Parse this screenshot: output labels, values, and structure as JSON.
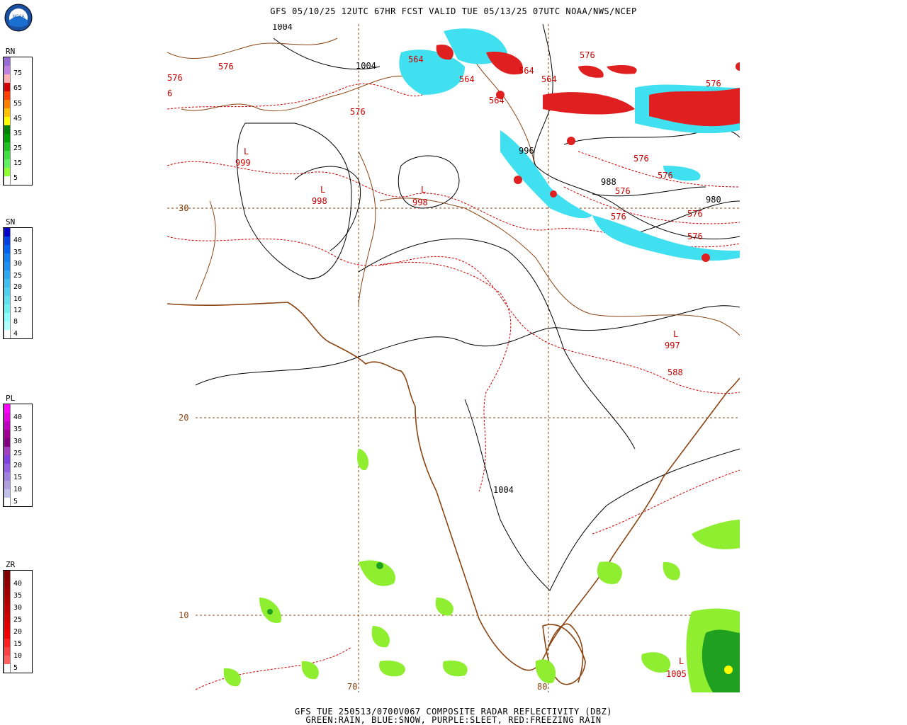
{
  "header": {
    "title": "GFS 05/10/25 12UTC 67HR FCST VALID TUE 05/13/25 07UTC NOAA/NWS/NCEP",
    "footer_line1": "GFS TUE 250513/0700V067 COMPOSITE RADAR REFLECTIVITY (DBZ)",
    "footer_line2": "GREEN:RAIN, BLUE:SNOW, PURPLE:SLEET, RED:FREEZING RAIN",
    "logo_text": "NOAA"
  },
  "legends": [
    {
      "key": "rn",
      "label": "RN",
      "ticks": [
        "75",
        "65",
        "55",
        "45",
        "35",
        "25",
        "15",
        "5"
      ],
      "colors": [
        "#9a6ad8",
        "#c080e0",
        "#ffb0b0",
        "#d00000",
        "#ff4000",
        "#ff8000",
        "#ffc000",
        "#ffff00",
        "#008000",
        "#00a000",
        "#20c020",
        "#40e040",
        "#60f060",
        "#90ff30",
        "#ffffff"
      ]
    },
    {
      "key": "sn",
      "label": "SN",
      "ticks": [
        "40",
        "35",
        "30",
        "25",
        "20",
        "16",
        "12",
        "8",
        "4"
      ],
      "colors": [
        "#0000c8",
        "#0040e0",
        "#0060f0",
        "#1080f0",
        "#2090f0",
        "#30a8f0",
        "#40c0f0",
        "#50d0f0",
        "#60e0f0",
        "#70f0f0",
        "#90ffff",
        "#b0ffff",
        "#ffffff"
      ]
    },
    {
      "key": "pl",
      "label": "PL",
      "ticks": [
        "40",
        "35",
        "30",
        "25",
        "20",
        "15",
        "10",
        "5"
      ],
      "colors": [
        "#ff00ff",
        "#e000e0",
        "#c000c0",
        "#a00090",
        "#800080",
        "#a040c0",
        "#8040e0",
        "#9060e0",
        "#a080e0",
        "#b0a0e0",
        "#c0c0e8",
        "#ffffff"
      ]
    },
    {
      "key": "zr",
      "label": "ZR",
      "ticks": [
        "40",
        "35",
        "30",
        "25",
        "20",
        "15",
        "10",
        "5"
      ],
      "colors": [
        "#800000",
        "#900000",
        "#a00000",
        "#b00000",
        "#c00000",
        "#d00000",
        "#e00000",
        "#f00000",
        "#ff2020",
        "#ff4040",
        "#ff6060",
        "#ffffff"
      ]
    }
  ],
  "map": {
    "lat_labels": [
      "30",
      "20",
      "10"
    ],
    "lon_labels": [
      "70",
      "80"
    ],
    "pressure_labels": [
      {
        "text": "1004",
        "kind": "isobar"
      },
      {
        "text": "1004",
        "kind": "isobar"
      },
      {
        "text": "996",
        "kind": "isobar"
      },
      {
        "text": "988",
        "kind": "isobar"
      },
      {
        "text": "980",
        "kind": "isobar"
      },
      {
        "text": "1004",
        "kind": "isobar"
      }
    ],
    "thickness_labels": [
      "576",
      "576",
      "576",
      "564",
      "564",
      "564",
      "564",
      "564",
      "576",
      "576",
      "576",
      "576",
      "576",
      "576",
      "576",
      "588",
      "576",
      "6"
    ],
    "lows": [
      {
        "symbol": "L",
        "value": "999"
      },
      {
        "symbol": "L",
        "value": "998"
      },
      {
        "symbol": "L",
        "value": "998"
      },
      {
        "symbol": "L",
        "value": "997"
      },
      {
        "symbol": "L",
        "value": "1005"
      }
    ],
    "colors": {
      "coast": "#8b4513",
      "grid": "#8b4513",
      "thickness": "#cc0000",
      "isobar": "#000000",
      "rain_light": "#90ee30",
      "rain_mid": "#40c040",
      "rain_heavy": "#008000",
      "snow": "#40e0f0",
      "zr": "#e02020",
      "rain_peak": "#ffff00"
    }
  }
}
